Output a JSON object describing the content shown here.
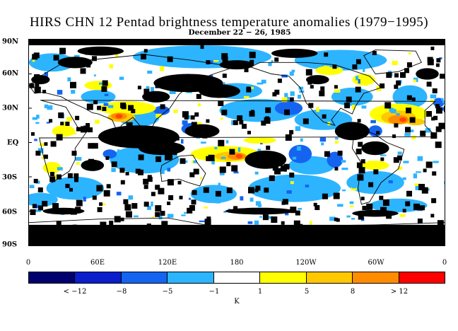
{
  "title": "HIRS CHN 12 Pentad brightness temperature anomalies (1979−1995)",
  "subtitle": "December 22 − 26, 1985",
  "lat_labels": [
    "90N",
    "60N",
    "30N",
    "EQ",
    "30S",
    "60S",
    "90S"
  ],
  "lon_labels": [
    "0",
    "60E",
    "120E",
    "180",
    "120W",
    "60W",
    "0"
  ],
  "colorbar": {
    "colors": [
      "#00006e",
      "#0a1ecb",
      "#1464f0",
      "#2db4ff",
      "#ffffff",
      "#ffff00",
      "#ffc800",
      "#ff8c00",
      "#ff0000"
    ],
    "labels": [
      "< −12",
      "−8",
      "−5",
      "−1",
      "1",
      "5",
      "8",
      "> 12"
    ],
    "unit": "K"
  },
  "map_colors": {
    "missing": "#000000",
    "neg_weak": "#2db4ff",
    "neg_mid": "#1464f0",
    "pos_weak": "#ffff00",
    "pos_mid": "#ffc800",
    "pos_strong": "#ff8c00",
    "pos_max": "#ff4500",
    "coast": "#000000"
  }
}
